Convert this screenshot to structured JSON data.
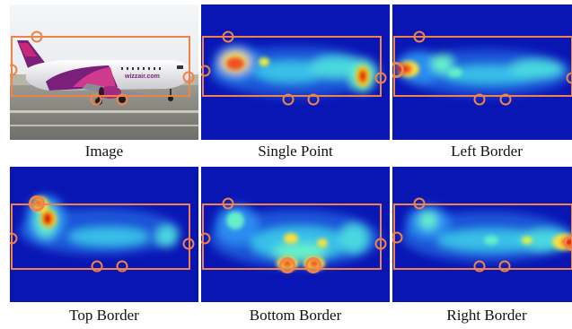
{
  "figure": {
    "panels": [
      {
        "id": "image",
        "caption": "Image",
        "kind": "photo"
      },
      {
        "id": "single-point",
        "caption": "Single Point",
        "kind": "heatmap"
      },
      {
        "id": "left-border",
        "caption": "Left Border",
        "kind": "heatmap"
      },
      {
        "id": "top-border",
        "caption": "Top Border",
        "kind": "heatmap"
      },
      {
        "id": "bottom-border",
        "caption": "Bottom Border",
        "kind": "heatmap"
      },
      {
        "id": "right-border",
        "caption": "Right Border",
        "kind": "heatmap"
      }
    ],
    "photo_label": "wizzair.com",
    "colors": {
      "box": "#f0824a",
      "heat_bg": "#0a16b4",
      "heat_low": "#2a8cf0",
      "heat_mid": "#66f0c8",
      "heat_high": "#f8e040",
      "heat_peak": "#e00000"
    }
  }
}
